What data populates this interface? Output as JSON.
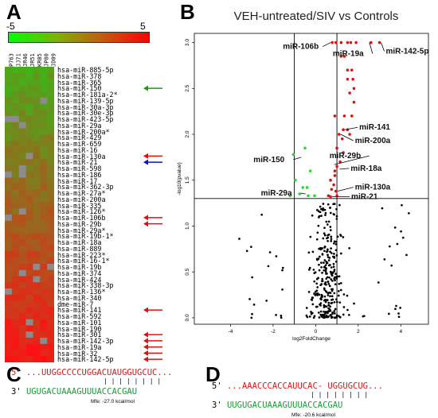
{
  "panels": {
    "a": "A",
    "b": "B",
    "c": "C",
    "d": "D"
  },
  "heatmap": {
    "scale_min": "-5",
    "scale_max": "5",
    "samples": [
      "P763",
      "JJ71",
      "JR46",
      "JR51",
      "KR05",
      "JP80",
      "JD09"
    ],
    "mirnas": [
      "hsa-miR-885-5p",
      "hsa-miR-378",
      "hsa-miR-365",
      "hsa-miR-150",
      "hsa-miR-181a-2*",
      "hsa-miR-139-5p",
      "hsa-miR-30a-3p",
      "hsa-miR-30e-3p",
      "hsa-miR-423-5p",
      "hsa-miR-29a",
      "hsa-miR-200a*",
      "hsa-miR-429",
      "hsa-miR-659",
      "hsa-miR-16",
      "hsa-miR-130a",
      "hsa-miR-21",
      "hsa-miR-598",
      "hsa-miR-186",
      "hsa-miR-17",
      "hsa-miR-362-3p",
      "hsa-miR-27a*",
      "hsa-miR-200a",
      "hsa-miR-335",
      "hsa-miR-126*",
      "hsa-miR-106b",
      "hsa-miR-29b",
      "hsa-miR-29a*",
      "hsa-miR-19b-1*",
      "hsa-miR-18a",
      "hsa-miR-889",
      "hsa-miR-223*",
      "hsa-miR-16-1*",
      "hsa-miR-19b",
      "hsa-miR-374",
      "hsa-miR-424",
      "hsa-miR-338-3p",
      "hsa-miR-136*",
      "hsa-miR-340",
      "dme-miR-7",
      "hsa-miR-141",
      "hsa-miR-592",
      "hsa-miR-101",
      "hsa-miR-190",
      "hsa-miR-301",
      "hsa-miR-142-3p",
      "hsa-miR-19a",
      "hsa-miR-32",
      "hsa-miR-142-5p"
    ],
    "arrows": [
      {
        "row": 3,
        "color": "#1a9a1a"
      },
      {
        "row": 14,
        "color": "#e01010"
      },
      {
        "row": 15,
        "color": "#1010c0"
      },
      {
        "row": 24,
        "color": "#e01010"
      },
      {
        "row": 25,
        "color": "#e01010"
      },
      {
        "row": 39,
        "color": "#e01010"
      },
      {
        "row": 43,
        "color": "#e01010"
      },
      {
        "row": 44,
        "color": "#e01010"
      },
      {
        "row": 45,
        "color": "#e01010"
      },
      {
        "row": 46,
        "color": "#e01010"
      },
      {
        "row": 47,
        "color": "#e01010"
      }
    ]
  },
  "chart_data": {
    "type": "scatter",
    "title": "VEH-untreated/SIV vs Controls",
    "xlabel": "log2FoldChange",
    "ylabel": "-log10(pvalue)",
    "xlim": [
      -5.7,
      5.3
    ],
    "ylim": [
      -0.07,
      3.1
    ],
    "xticks": [
      -4,
      -2,
      0,
      2,
      4
    ],
    "yticks": [
      0.0,
      0.5,
      1.0,
      1.5,
      2.0,
      2.5,
      3.0
    ],
    "hline": 1.3,
    "vlines": [
      -1,
      1
    ],
    "colors": {
      "up": "#e01010",
      "down": "#22dd22",
      "ns": "#000000"
    },
    "up_points": [
      [
        0.78,
        3.0
      ],
      [
        0.95,
        3.0
      ],
      [
        1.2,
        3.0
      ],
      [
        1.5,
        3.0
      ],
      [
        1.65,
        3.0
      ],
      [
        2.6,
        3.0
      ],
      [
        3.0,
        3.0
      ],
      [
        1.2,
        2.85
      ],
      [
        1.35,
        2.85
      ],
      [
        1.9,
        3.0
      ],
      [
        1.5,
        2.7
      ],
      [
        1.7,
        2.7
      ],
      [
        1.5,
        2.6
      ],
      [
        1.75,
        2.6
      ],
      [
        1.6,
        2.45
      ],
      [
        1.8,
        2.5
      ],
      [
        1.8,
        2.35
      ],
      [
        0.9,
        2.2
      ],
      [
        1.35,
        2.2
      ],
      [
        1.7,
        2.2
      ],
      [
        1.1,
        2.0
      ],
      [
        1.3,
        2.05
      ],
      [
        1.5,
        2.05
      ],
      [
        1.6,
        2.0
      ],
      [
        1.25,
        1.95
      ],
      [
        1.0,
        1.85
      ],
      [
        1.3,
        1.8
      ],
      [
        0.9,
        1.6
      ],
      [
        1.0,
        1.65
      ],
      [
        1.15,
        1.7
      ],
      [
        0.7,
        1.5
      ],
      [
        0.9,
        1.55
      ],
      [
        0.75,
        1.4
      ],
      [
        0.85,
        1.45
      ],
      [
        0.95,
        1.38
      ],
      [
        0.6,
        1.33
      ],
      [
        0.7,
        1.32
      ],
      [
        1.0,
        1.33
      ]
    ],
    "down_points": [
      [
        -0.5,
        1.85
      ],
      [
        -1.05,
        1.78
      ],
      [
        -0.25,
        1.6
      ],
      [
        -0.95,
        1.5
      ],
      [
        -0.6,
        1.42
      ],
      [
        -0.4,
        1.42
      ],
      [
        -0.75,
        1.35
      ],
      [
        -0.35,
        1.33
      ],
      [
        -0.05,
        1.33
      ],
      [
        -1.2,
        1.33
      ]
    ],
    "annotations": [
      {
        "text": "miR-106b",
        "x": 0.78,
        "y": 3.0
      },
      {
        "text": "miR-19a",
        "x": 2.6,
        "y": 3.0
      },
      {
        "text": "miR-142-5p",
        "x": 3.0,
        "y": 3.0
      },
      {
        "text": "miR-141",
        "x": 1.3,
        "y": 2.05
      },
      {
        "text": "miR-200a",
        "x": 1.1,
        "y": 2.0
      },
      {
        "text": "miR-29b",
        "x": 0.95,
        "y": 1.67
      },
      {
        "text": "miR-150",
        "x": -0.6,
        "y": 1.75
      },
      {
        "text": "miR-18a",
        "x": 1.05,
        "y": 1.62
      },
      {
        "text": "miR-29a",
        "x": -0.4,
        "y": 1.35
      },
      {
        "text": "miR-130a",
        "x": 0.95,
        "y": 1.38
      },
      {
        "text": "miR-21",
        "x": 0.7,
        "y": 1.32
      }
    ]
  },
  "seq_c": {
    "line1_prefix": "5'",
    "line1_seq": "...UUGGCCCCUGGACUAUGGUGCUC...",
    "pairs": "| | | | | | | |",
    "line2_prefix": "3'",
    "line2_seq": "UGUGACUAAAGUUUACCACGAU",
    "mfe": "Mfe: -27.0 kcal/mol"
  },
  "seq_d": {
    "line1_prefix": "5'",
    "line1_seq": "...AAACCCACCAUUCAC- UGGUGCUG...",
    "pairs": "| | | | | | | |",
    "line2_prefix": "3'",
    "line2_seq": "UUGUGACUAAAGUUUACCACGAU",
    "mfe": "Mfe: -20.6 kcal/mol"
  }
}
